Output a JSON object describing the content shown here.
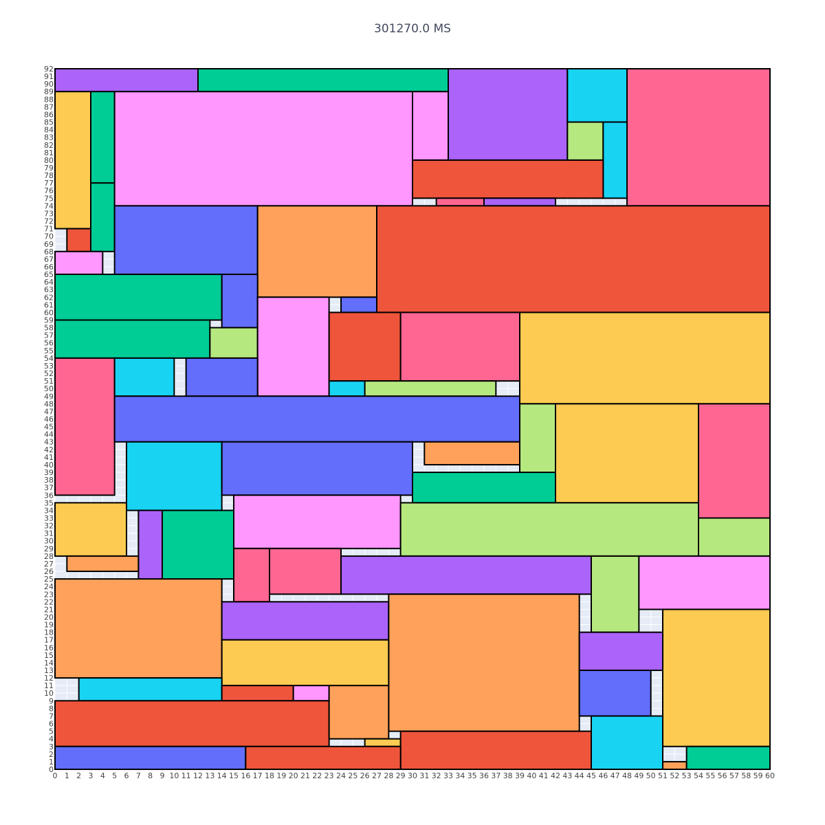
{
  "chart_data": {
    "type": "rectangle-packing",
    "title": "301270.0 MS",
    "xlim": [
      0,
      60
    ],
    "ylim": [
      0,
      92
    ],
    "x_ticks": [
      0,
      1,
      2,
      3,
      4,
      5,
      6,
      7,
      8,
      9,
      10,
      11,
      12,
      13,
      14,
      15,
      16,
      17,
      18,
      19,
      20,
      21,
      22,
      23,
      24,
      25,
      26,
      27,
      28,
      29,
      30,
      31,
      32,
      33,
      34,
      35,
      36,
      37,
      38,
      39,
      40,
      41,
      42,
      43,
      44,
      45,
      46,
      47,
      48,
      49,
      50,
      51,
      52,
      53,
      54,
      55,
      56,
      57,
      58,
      59,
      60
    ],
    "y_ticks": [
      0,
      1,
      2,
      3,
      4,
      5,
      6,
      7,
      8,
      9,
      10,
      11,
      12,
      13,
      14,
      15,
      16,
      17,
      18,
      19,
      20,
      21,
      22,
      23,
      24,
      25,
      26,
      27,
      28,
      29,
      30,
      31,
      32,
      33,
      34,
      35,
      36,
      37,
      38,
      39,
      40,
      41,
      42,
      43,
      44,
      45,
      46,
      47,
      48,
      49,
      50,
      51,
      52,
      53,
      54,
      55,
      56,
      57,
      58,
      59,
      60,
      61,
      62,
      63,
      64,
      65,
      66,
      67,
      68,
      69,
      70,
      71,
      72,
      73,
      74,
      75,
      76,
      77,
      78,
      79,
      80,
      81,
      82,
      83,
      84,
      85,
      86,
      87,
      88,
      89,
      90,
      91,
      92
    ],
    "grid": true,
    "colors": {
      "blue": "#636efa",
      "red": "#ef553b",
      "green": "#00cc96",
      "purple": "#ab63fa",
      "orange": "#ffa15a",
      "cyan": "#19d3f3",
      "pink": "#ff6692",
      "lime": "#b6e880",
      "magenta": "#ff97ff",
      "yellow": "#fecb52"
    },
    "rectangles": [
      {
        "x0": 0,
        "x1": 12,
        "y0": 89,
        "y1": 92,
        "color": "purple"
      },
      {
        "x0": 12,
        "x1": 33,
        "y0": 89,
        "y1": 92,
        "color": "green"
      },
      {
        "x0": 33,
        "x1": 43,
        "y0": 80,
        "y1": 92,
        "color": "purple"
      },
      {
        "x0": 43,
        "x1": 48,
        "y0": 85,
        "y1": 92,
        "color": "cyan"
      },
      {
        "x0": 48,
        "x1": 60,
        "y0": 74,
        "y1": 92,
        "color": "pink"
      },
      {
        "x0": 0,
        "x1": 3,
        "y0": 71,
        "y1": 89,
        "color": "yellow"
      },
      {
        "x0": 3,
        "x1": 5,
        "y0": 77,
        "y1": 89,
        "color": "green"
      },
      {
        "x0": 3,
        "x1": 5,
        "y0": 68,
        "y1": 77,
        "color": "green"
      },
      {
        "x0": 5,
        "x1": 30,
        "y0": 74,
        "y1": 89,
        "color": "magenta"
      },
      {
        "x0": 30,
        "x1": 33,
        "y0": 80,
        "y1": 89,
        "color": "magenta"
      },
      {
        "x0": 43,
        "x1": 46,
        "y0": 80,
        "y1": 85,
        "color": "lime"
      },
      {
        "x0": 46,
        "x1": 48,
        "y0": 75,
        "y1": 85,
        "color": "cyan"
      },
      {
        "x0": 30,
        "x1": 46,
        "y0": 75,
        "y1": 80,
        "color": "red"
      },
      {
        "x0": 32,
        "x1": 36,
        "y0": 74,
        "y1": 75,
        "color": "pink"
      },
      {
        "x0": 36,
        "x1": 42,
        "y0": 74,
        "y1": 75,
        "color": "purple"
      },
      {
        "x0": 1,
        "x1": 3,
        "y0": 68,
        "y1": 71,
        "color": "red"
      },
      {
        "x0": 0,
        "x1": 4,
        "y0": 65,
        "y1": 68,
        "color": "magenta"
      },
      {
        "x0": 5,
        "x1": 17,
        "y0": 65,
        "y1": 74,
        "color": "blue"
      },
      {
        "x0": 17,
        "x1": 27,
        "y0": 62,
        "y1": 74,
        "color": "orange"
      },
      {
        "x0": 27,
        "x1": 60,
        "y0": 60,
        "y1": 74,
        "color": "red"
      },
      {
        "x0": 0,
        "x1": 14,
        "y0": 59,
        "y1": 65,
        "color": "green"
      },
      {
        "x0": 14,
        "x1": 17,
        "y0": 58,
        "y1": 65,
        "color": "blue"
      },
      {
        "x0": 24,
        "x1": 27,
        "y0": 60,
        "y1": 62,
        "color": "blue"
      },
      {
        "x0": 0,
        "x1": 13,
        "y0": 54,
        "y1": 59,
        "color": "green"
      },
      {
        "x0": 13,
        "x1": 17,
        "y0": 54,
        "y1": 58,
        "color": "lime"
      },
      {
        "x0": 17,
        "x1": 23,
        "y0": 49,
        "y1": 62,
        "color": "magenta"
      },
      {
        "x0": 23,
        "x1": 29,
        "y0": 51,
        "y1": 60,
        "color": "red"
      },
      {
        "x0": 29,
        "x1": 39,
        "y0": 51,
        "y1": 60,
        "color": "pink"
      },
      {
        "x0": 39,
        "x1": 60,
        "y0": 48,
        "y1": 60,
        "color": "yellow"
      },
      {
        "x0": 0,
        "x1": 5,
        "y0": 36,
        "y1": 54,
        "color": "pink"
      },
      {
        "x0": 5,
        "x1": 10,
        "y0": 49,
        "y1": 54,
        "color": "cyan"
      },
      {
        "x0": 11,
        "x1": 17,
        "y0": 49,
        "y1": 54,
        "color": "blue"
      },
      {
        "x0": 23,
        "x1": 26,
        "y0": 49,
        "y1": 51,
        "color": "cyan"
      },
      {
        "x0": 26,
        "x1": 37,
        "y0": 49,
        "y1": 51,
        "color": "lime"
      },
      {
        "x0": 5,
        "x1": 39,
        "y0": 43,
        "y1": 49,
        "color": "blue"
      },
      {
        "x0": 39,
        "x1": 42,
        "y0": 39,
        "y1": 48,
        "color": "lime"
      },
      {
        "x0": 42,
        "x1": 54,
        "y0": 35,
        "y1": 48,
        "color": "yellow"
      },
      {
        "x0": 54,
        "x1": 60,
        "y0": 33,
        "y1": 48,
        "color": "pink"
      },
      {
        "x0": 6,
        "x1": 14,
        "y0": 34,
        "y1": 43,
        "color": "cyan"
      },
      {
        "x0": 14,
        "x1": 30,
        "y0": 36,
        "y1": 43,
        "color": "blue"
      },
      {
        "x0": 31,
        "x1": 39,
        "y0": 40,
        "y1": 43,
        "color": "orange"
      },
      {
        "x0": 30,
        "x1": 42,
        "y0": 35,
        "y1": 39,
        "color": "green"
      },
      {
        "x0": 0,
        "x1": 6,
        "y0": 28,
        "y1": 35,
        "color": "yellow"
      },
      {
        "x0": 15,
        "x1": 29,
        "y0": 29,
        "y1": 36,
        "color": "magenta"
      },
      {
        "x0": 29,
        "x1": 54,
        "y0": 28,
        "y1": 35,
        "color": "lime"
      },
      {
        "x0": 54,
        "x1": 60,
        "y0": 28,
        "y1": 33,
        "color": "lime"
      },
      {
        "x0": 7,
        "x1": 9,
        "y0": 25,
        "y1": 34,
        "color": "purple"
      },
      {
        "x0": 9,
        "x1": 15,
        "y0": 25,
        "y1": 34,
        "color": "green"
      },
      {
        "x0": 1,
        "x1": 7,
        "y0": 26,
        "y1": 28,
        "color": "orange"
      },
      {
        "x0": 15,
        "x1": 18,
        "y0": 22,
        "y1": 29,
        "color": "pink"
      },
      {
        "x0": 18,
        "x1": 24,
        "y0": 23,
        "y1": 29,
        "color": "pink"
      },
      {
        "x0": 24,
        "x1": 45,
        "y0": 23,
        "y1": 28,
        "color": "purple"
      },
      {
        "x0": 45,
        "x1": 49,
        "y0": 18,
        "y1": 28,
        "color": "lime"
      },
      {
        "x0": 49,
        "x1": 60,
        "y0": 21,
        "y1": 28,
        "color": "magenta"
      },
      {
        "x0": 0,
        "x1": 14,
        "y0": 12,
        "y1": 25,
        "color": "orange"
      },
      {
        "x0": 14,
        "x1": 28,
        "y0": 17,
        "y1": 22,
        "color": "purple"
      },
      {
        "x0": 28,
        "x1": 44,
        "y0": 5,
        "y1": 23,
        "color": "orange"
      },
      {
        "x0": 44,
        "x1": 51,
        "y0": 13,
        "y1": 18,
        "color": "purple"
      },
      {
        "x0": 51,
        "x1": 60,
        "y0": 3,
        "y1": 21,
        "color": "yellow"
      },
      {
        "x0": 14,
        "x1": 28,
        "y0": 11,
        "y1": 17,
        "color": "yellow"
      },
      {
        "x0": 44,
        "x1": 50,
        "y0": 7,
        "y1": 13,
        "color": "blue"
      },
      {
        "x0": 2,
        "x1": 14,
        "y0": 9,
        "y1": 12,
        "color": "cyan"
      },
      {
        "x0": 14,
        "x1": 20,
        "y0": 9,
        "y1": 11,
        "color": "red"
      },
      {
        "x0": 20,
        "x1": 23,
        "y0": 9,
        "y1": 11,
        "color": "magenta"
      },
      {
        "x0": 0,
        "x1": 23,
        "y0": 3,
        "y1": 9,
        "color": "red"
      },
      {
        "x0": 23,
        "x1": 28,
        "y0": 4,
        "y1": 11,
        "color": "orange"
      },
      {
        "x0": 26,
        "x1": 29,
        "y0": 3,
        "y1": 4,
        "color": "yellow"
      },
      {
        "x0": 29,
        "x1": 45,
        "y0": 0,
        "y1": 5,
        "color": "red"
      },
      {
        "x0": 45,
        "x1": 51,
        "y0": 0,
        "y1": 7,
        "color": "cyan"
      },
      {
        "x0": 0,
        "x1": 16,
        "y0": 0,
        "y1": 3,
        "color": "blue"
      },
      {
        "x0": 16,
        "x1": 29,
        "y0": 0,
        "y1": 3,
        "color": "red"
      },
      {
        "x0": 51,
        "x1": 53,
        "y0": 0,
        "y1": 1,
        "color": "orange"
      },
      {
        "x0": 53,
        "x1": 60,
        "y0": 0,
        "y1": 3,
        "color": "green"
      }
    ]
  }
}
